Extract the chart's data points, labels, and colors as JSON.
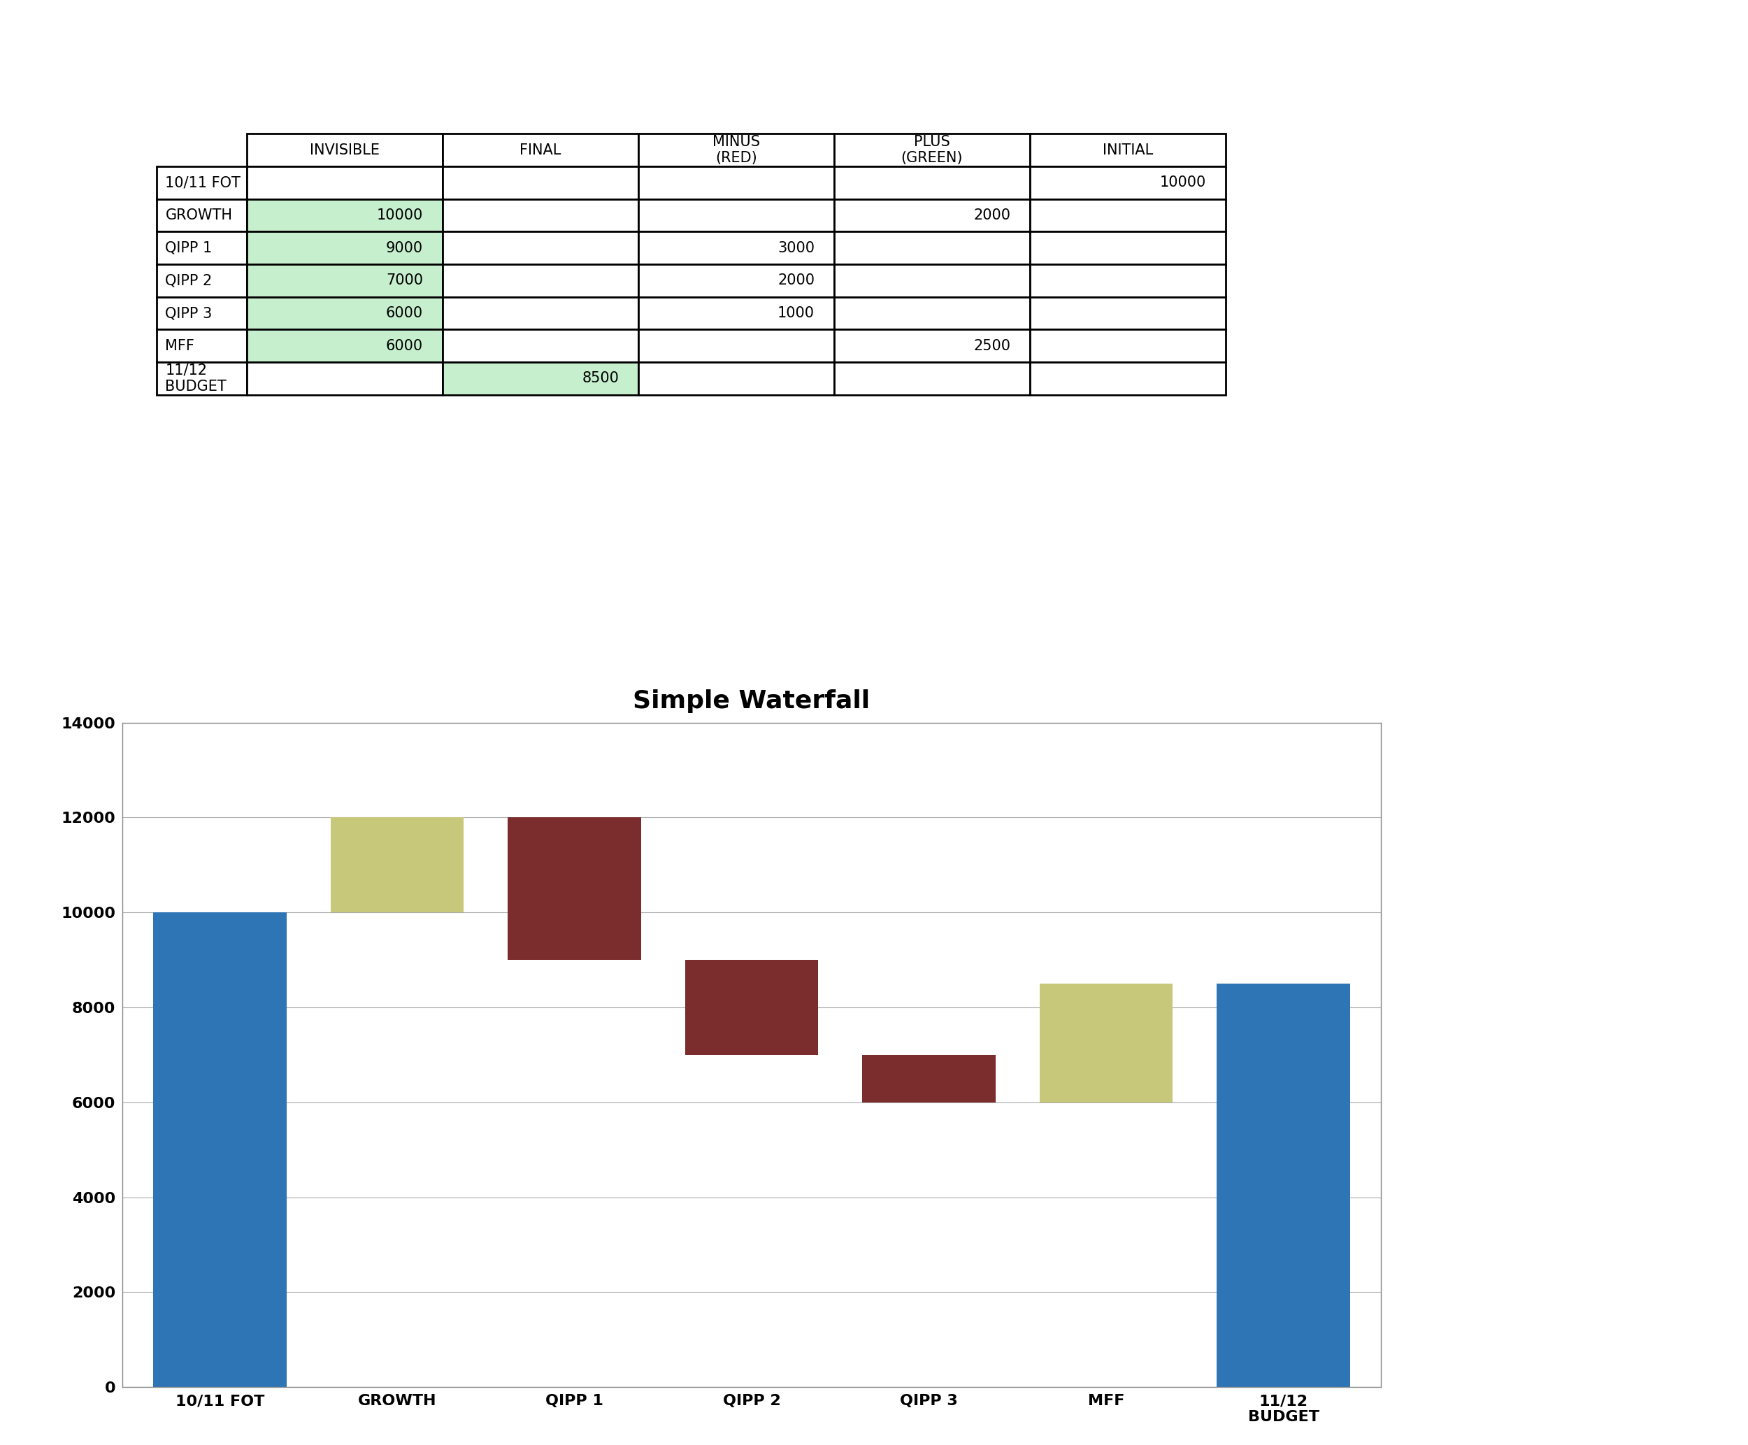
{
  "title": "Simple Waterfall",
  "background_color": "#ffffff",
  "chart_bg": "#ffffff",
  "table": {
    "col_headers": [
      "",
      "INVISIBLE",
      "FINAL",
      "MINUS\n(RED)",
      "PLUS\n(GREEN)",
      "INITIAL"
    ],
    "rows": [
      "10/11 FOT",
      "GROWTH",
      "QIPP 1",
      "QIPP 2",
      "QIPP 3",
      "MFF",
      "11/12\nBUDGET"
    ],
    "data": [
      [
        "",
        "",
        "",
        "",
        "10000"
      ],
      [
        "10000",
        "",
        "",
        "2000",
        ""
      ],
      [
        "9000",
        "",
        "3000",
        "",
        ""
      ],
      [
        "7000",
        "",
        "2000",
        "",
        ""
      ],
      [
        "6000",
        "",
        "1000",
        "",
        ""
      ],
      [
        "6000",
        "",
        "",
        "2500",
        ""
      ],
      [
        "",
        "8500",
        "",
        "",
        ""
      ]
    ],
    "cell_colors": [
      [
        "#ffffff",
        "#ffffff",
        "#ffffff",
        "#ffffff",
        "#ffffff"
      ],
      [
        "#c6efce",
        "#ffffff",
        "#ffffff",
        "#ffffff",
        "#ffffff"
      ],
      [
        "#c6efce",
        "#ffffff",
        "#ffffff",
        "#ffffff",
        "#ffffff"
      ],
      [
        "#c6efce",
        "#ffffff",
        "#ffffff",
        "#ffffff",
        "#ffffff"
      ],
      [
        "#c6efce",
        "#ffffff",
        "#ffffff",
        "#ffffff",
        "#ffffff"
      ],
      [
        "#c6efce",
        "#ffffff",
        "#ffffff",
        "#ffffff",
        "#ffffff"
      ],
      [
        "#ffffff",
        "#c6efce",
        "#ffffff",
        "#ffffff",
        "#ffffff"
      ]
    ]
  },
  "categories": [
    "10/11 FOT",
    "GROWTH",
    "QIPP 1",
    "QIPP 2",
    "QIPP 3",
    "MFF",
    "11/12\nBUDGET"
  ],
  "invisible": [
    0,
    10000,
    9000,
    7000,
    6000,
    6000,
    0
  ],
  "bar_heights": [
    10000,
    2000,
    3000,
    2000,
    1000,
    2500,
    8500
  ],
  "bar_types": [
    "initial",
    "plus",
    "minus",
    "minus",
    "minus",
    "plus",
    "final"
  ],
  "color_initial": "#2e75b6",
  "color_final": "#2e75b6",
  "color_plus": "#c8c87a",
  "color_minus": "#7b2d2d",
  "ylim": [
    0,
    14000
  ],
  "yticks": [
    0,
    2000,
    4000,
    6000,
    8000,
    10000,
    12000,
    14000
  ],
  "title_fontsize": 26,
  "tick_fontsize": 16,
  "table_fontsize": 15,
  "header_fontsize": 15
}
